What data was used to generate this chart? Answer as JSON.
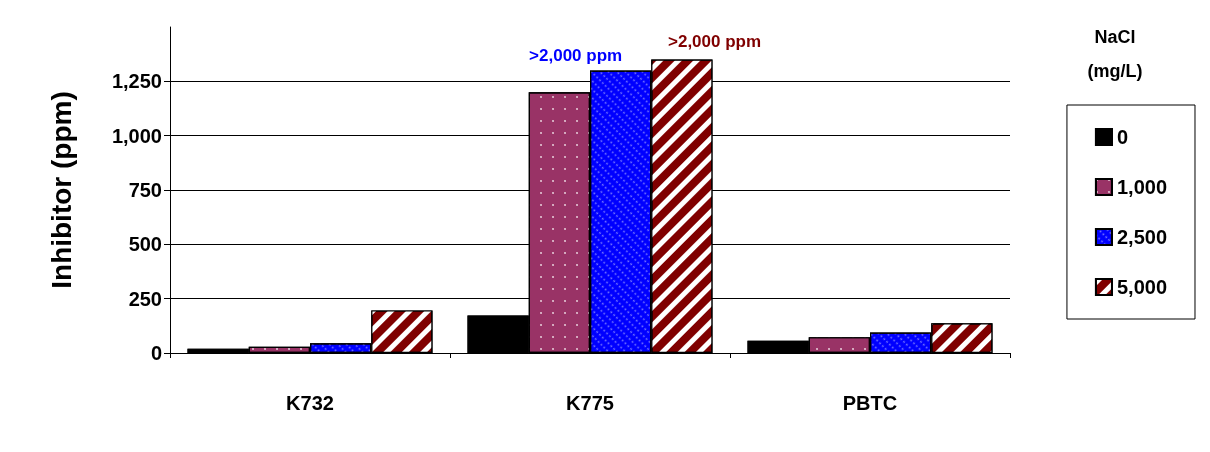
{
  "chart_data": {
    "type": "bar",
    "ylabel": "Inhibitor (ppm)",
    "legend_title": "NaCl (mg/L)",
    "categories": [
      "K732",
      "K775",
      "PBTC"
    ],
    "series": [
      {
        "name": "0",
        "color": "#000000",
        "values": [
          20,
          173,
          56
        ]
      },
      {
        "name": "1,000",
        "color": "#993366",
        "values": [
          29,
          1200,
          73
        ]
      },
      {
        "name": "2,500",
        "color": "#0000ff",
        "values": [
          45,
          1300,
          94
        ]
      },
      {
        "name": "5,000",
        "color": "#800000",
        "values": [
          196,
          1350,
          137
        ]
      }
    ],
    "ylim": [
      0,
      1500
    ],
    "yticks": [
      0,
      250,
      500,
      750,
      {
        "value": 1000,
        "label": "1,000"
      },
      {
        "value": 1250,
        "label": "1,250"
      }
    ],
    "grid": "y",
    "legend": "right",
    "annotations": [
      {
        "text": ">2,000 ppm",
        "x": "K775",
        "y": 1300
      },
      ">2,000 ppm"
    ]
  }
}
